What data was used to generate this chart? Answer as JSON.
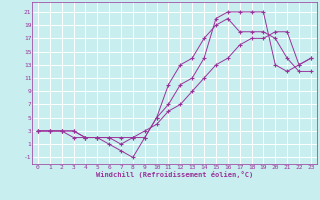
{
  "bg_color": "#c8eef0",
  "grid_color": "#ffffff",
  "line_color": "#993399",
  "marker": "+",
  "xlabel": "Windchill (Refroidissement éolien,°C)",
  "xlim": [
    -0.5,
    23.5
  ],
  "ylim": [
    -2,
    22.5
  ],
  "xticks": [
    0,
    1,
    2,
    3,
    4,
    5,
    6,
    7,
    8,
    9,
    10,
    11,
    12,
    13,
    14,
    15,
    16,
    17,
    18,
    19,
    20,
    21,
    22,
    23
  ],
  "yticks": [
    -1,
    1,
    3,
    5,
    7,
    9,
    11,
    13,
    15,
    17,
    19,
    21
  ],
  "line1_x": [
    0,
    1,
    2,
    3,
    4,
    5,
    6,
    7,
    8,
    9,
    10,
    11,
    12,
    13,
    14,
    15,
    16,
    17,
    18,
    19,
    20,
    21,
    22,
    23
  ],
  "line1_y": [
    3,
    3,
    3,
    3,
    2,
    2,
    2,
    1,
    2,
    2,
    5,
    7,
    10,
    11,
    14,
    20,
    21,
    21,
    21,
    21,
    13,
    12,
    13,
    14
  ],
  "line2_x": [
    0,
    1,
    2,
    3,
    4,
    5,
    6,
    7,
    8,
    9,
    10,
    11,
    12,
    13,
    14,
    15,
    16,
    17,
    18,
    19,
    20,
    21,
    22,
    23
  ],
  "line2_y": [
    3,
    3,
    3,
    3,
    2,
    2,
    1,
    0,
    -1,
    2,
    5,
    10,
    13,
    14,
    17,
    19,
    20,
    18,
    18,
    18,
    17,
    14,
    12,
    12
  ],
  "line3_x": [
    0,
    1,
    2,
    3,
    4,
    5,
    6,
    7,
    8,
    9,
    10,
    11,
    12,
    13,
    14,
    15,
    16,
    17,
    18,
    19,
    20,
    21,
    22,
    23
  ],
  "line3_y": [
    3,
    3,
    3,
    2,
    2,
    2,
    2,
    2,
    2,
    3,
    4,
    6,
    7,
    9,
    11,
    13,
    14,
    16,
    17,
    17,
    18,
    18,
    13,
    14
  ]
}
